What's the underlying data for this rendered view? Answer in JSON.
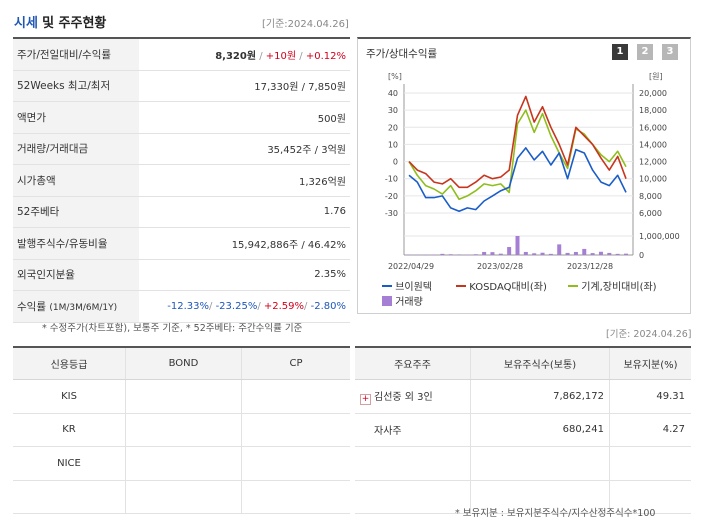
{
  "header": {
    "title_main": "시세",
    "title_rest": "및 주주현황",
    "date": "[기준:2024.04.26]"
  },
  "quote": {
    "rows": [
      {
        "label": "주가/전일대비/수익률",
        "price": "8,320원",
        "sep1": "/",
        "change": "+10원",
        "sep2": "/",
        "rate": "+0.12%"
      },
      {
        "label": "52Weeks 최고/최저",
        "value": "17,330원 / 7,850원"
      },
      {
        "label": "액면가",
        "value": "500원"
      },
      {
        "label": "거래량/거래대금",
        "value": "35,452주 / 3억원"
      },
      {
        "label": "시가총액",
        "value": "1,326억원"
      },
      {
        "label": "52주베타",
        "value": "1.76"
      },
      {
        "label": "발행주식수/유동비율",
        "value": "15,942,886주 / 46.42%"
      },
      {
        "label": "외국인지분율",
        "value": "2.35%"
      },
      {
        "label": "수익률",
        "label_sub": "(1M/3M/6M/1Y)",
        "r1": "-12.33%",
        "r2": "-23.25%",
        "r3": "+2.59%",
        "r4": "-2.80%"
      }
    ],
    "note": "* 수정주가(차트포함), 보통주 기준, * 52주베타: 주간수익률 기준"
  },
  "chart_panel": {
    "title": "주가/상대수익률",
    "pages": [
      "1",
      "2",
      "3"
    ],
    "active_page": "1",
    "left_unit": "[%]",
    "right_unit": "[원]",
    "legend": [
      "브이원텍",
      "KOSDAQ대비(좌)",
      "기계,장비대비(좌)",
      "거래량"
    ]
  },
  "chart_data": {
    "type": "line",
    "x_ticks": [
      "2022/04/29",
      "2023/02/28",
      "2023/12/28"
    ],
    "y_left_ticks": [
      "40",
      "30",
      "20",
      "10",
      "0",
      "-10",
      "-20",
      "-30"
    ],
    "y_right_ticks": [
      "20,000",
      "18,000",
      "16,000",
      "14,000",
      "12,000",
      "10,000",
      "8,000",
      "6,000"
    ],
    "volume_ticks": [
      "1,000,000",
      "0"
    ],
    "ylim_left": [
      -30,
      40
    ],
    "ylim_volume": [
      0,
      1000000
    ],
    "colors": {
      "price": "#1a5dc8",
      "kosdaq": "#c8351e",
      "machine": "#8fbe1c",
      "volume": "#a57fd4"
    },
    "series": [
      {
        "name": "브이원텍",
        "axis": "left",
        "values": [
          -8,
          -12,
          -21,
          -21,
          -20,
          -27,
          -29,
          -27,
          -28,
          -23,
          -20,
          -17,
          -15,
          2,
          8,
          1,
          6,
          -2,
          5,
          -10,
          7,
          5,
          -5,
          -12,
          -14,
          -8,
          -18
        ]
      },
      {
        "name": "KOSDAQ대비(좌)",
        "axis": "left",
        "values": [
          0,
          -5,
          -7,
          -12,
          -13,
          -10,
          -15,
          -15,
          -12,
          -8,
          -10,
          -9,
          -5,
          27,
          38,
          23,
          32,
          20,
          10,
          -2,
          20,
          15,
          10,
          2,
          -5,
          3,
          -10
        ]
      },
      {
        "name": "기계,장비대비(좌)",
        "axis": "left",
        "values": [
          0,
          -8,
          -14,
          -16,
          -19,
          -14,
          -22,
          -20,
          -17,
          -13,
          -14,
          -13,
          -18,
          22,
          30,
          17,
          28,
          15,
          5,
          -4,
          19,
          16,
          10,
          4,
          0,
          6,
          -3
        ]
      },
      {
        "name": "거래량",
        "axis": "volume",
        "values": [
          15000,
          10000,
          8000,
          22000,
          60000,
          40000,
          30000,
          25000,
          40000,
          160000,
          150000,
          70000,
          420000,
          1000000,
          160000,
          90000,
          120000,
          60000,
          560000,
          110000,
          160000,
          320000,
          100000,
          170000,
          110000,
          60000,
          70000
        ]
      }
    ]
  },
  "credit_table": {
    "headers": [
      "신용등급",
      "BOND",
      "CP"
    ],
    "rows": [
      [
        "KIS",
        "",
        ""
      ],
      [
        "KR",
        "",
        ""
      ],
      [
        "NICE",
        "",
        ""
      ],
      [
        "",
        "",
        ""
      ]
    ]
  },
  "holders_date": "[기준: 2024.04.26]",
  "holders_table": {
    "headers": [
      "주요주주",
      "보유주식수(보통)",
      "보유지분(%)"
    ],
    "rows": [
      {
        "name": "김선중 외 3인",
        "shares": "7,862,172",
        "pct": "49.31",
        "expandable": true
      },
      {
        "name": "자사주",
        "shares": "680,241",
        "pct": "4.27",
        "expandable": false
      },
      {
        "name": "",
        "shares": "",
        "pct": ""
      },
      {
        "name": "",
        "shares": "",
        "pct": ""
      }
    ],
    "note": "* 보유지분 : 보유지분주식수/지수산정주식수*100"
  }
}
